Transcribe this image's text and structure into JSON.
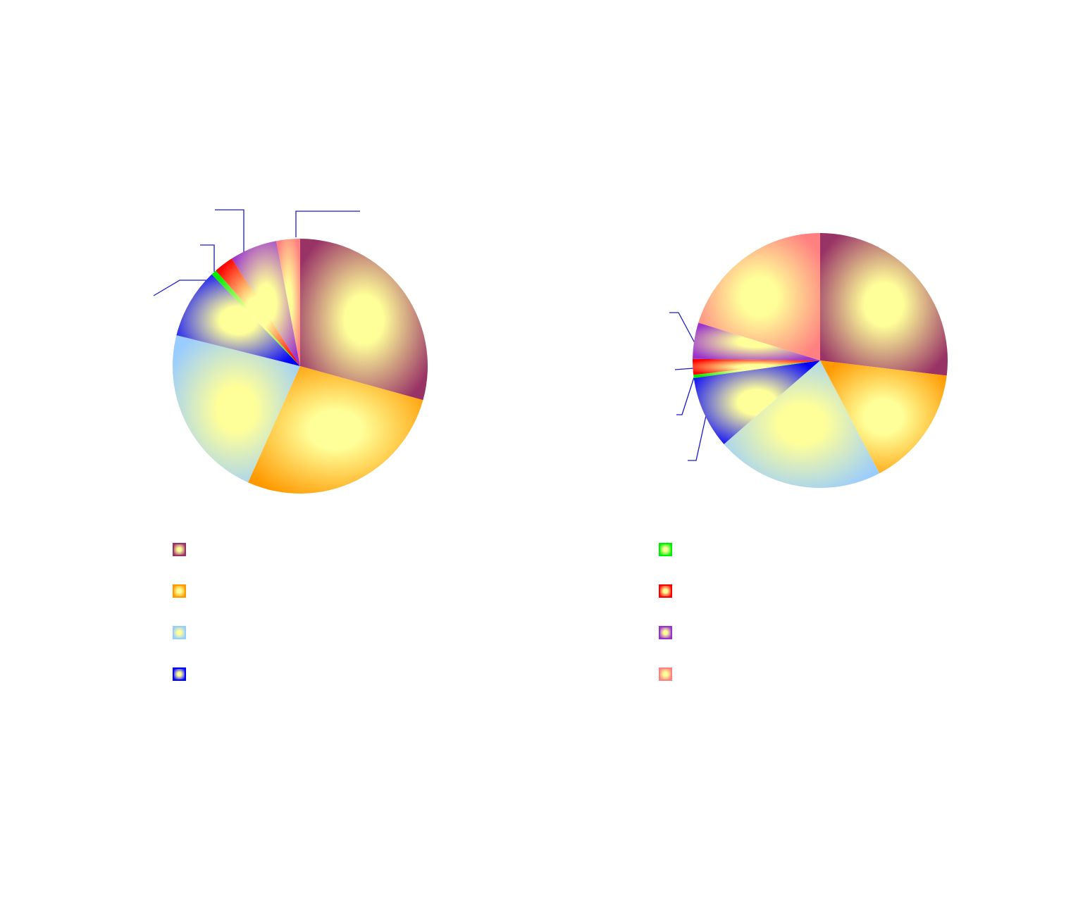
{
  "chart_data": [
    {
      "type": "pie",
      "categories": [
        null,
        null,
        null,
        null,
        null,
        null,
        null,
        null
      ],
      "values": [
        29.3,
        27.4,
        22.2,
        8.9,
        0.7,
        2.5,
        6.0,
        3.0
      ],
      "colors": [
        "#993366",
        "#ff9900",
        "#99ccff",
        "#0000ff",
        "#00ee00",
        "#ff0000",
        "#9933cc",
        "#ff8080"
      ]
    },
    {
      "type": "pie",
      "categories": [
        null,
        null,
        null,
        null,
        null,
        null,
        null,
        null
      ],
      "values": [
        26.9,
        15.4,
        21.3,
        9.2,
        0.4,
        2.0,
        4.6,
        20.2
      ],
      "colors": [
        "#993366",
        "#ff9900",
        "#99ccff",
        "#0000ff",
        "#00ee00",
        "#ff0000",
        "#9933cc",
        "#ff8080"
      ]
    }
  ]
}
